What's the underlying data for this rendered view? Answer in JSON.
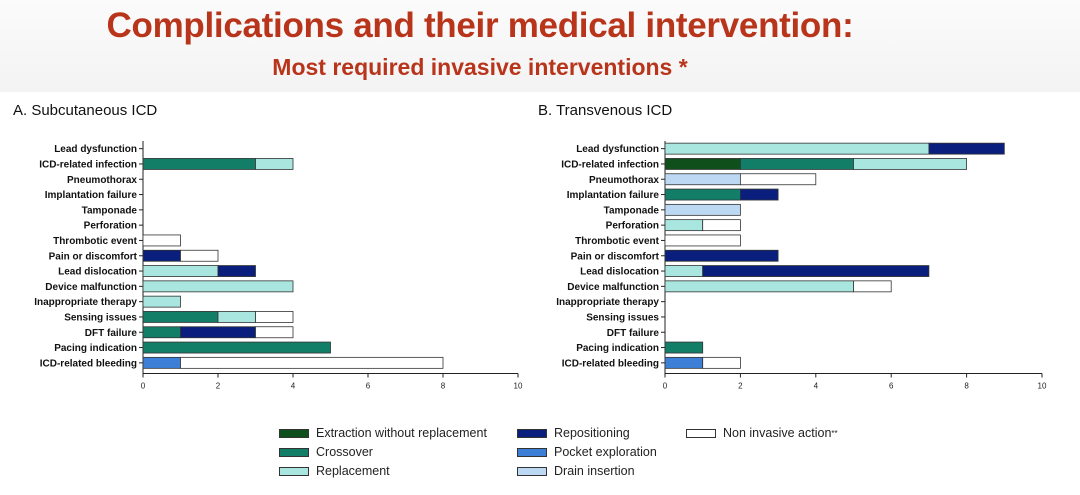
{
  "header": {
    "title": "Complications  and their medical intervention:",
    "subtitle": "Most required invasive interventions *"
  },
  "colors": {
    "extraction": "#0f4f1c",
    "crossover": "#137e68",
    "replacement": "#a8e6df",
    "repositioning": "#0a1f7d",
    "pocket": "#3d7fd6",
    "drain": "#bcd8f2",
    "noninvasive": "#ffffff"
  },
  "legend": [
    {
      "key": "extraction",
      "label": "Extraction without replacement"
    },
    {
      "key": "crossover",
      "label": "Crossover"
    },
    {
      "key": "replacement",
      "label": "Replacement"
    },
    {
      "key": "repositioning",
      "label": "Repositioning"
    },
    {
      "key": "pocket",
      "label": "Pocket exploration"
    },
    {
      "key": "drain",
      "label": "Drain insertion"
    },
    {
      "key": "noninvasive",
      "label": "Non invasive action",
      "sup": "**"
    }
  ],
  "chart_data": [
    {
      "type": "bar",
      "orientation": "horizontal",
      "stacked": true,
      "title": "A. Subcutaneous ICD",
      "xlim": [
        0,
        10
      ],
      "xticks": [
        "0",
        "2",
        "4",
        "6",
        "8",
        "10"
      ],
      "categories": [
        "Lead dysfunction",
        "ICD-related infection",
        "Pneumothorax",
        "Implantation failure",
        "Tamponade",
        "Perforation",
        "Thrombotic event",
        "Pain or discomfort",
        "Lead dislocation",
        "Device malfunction",
        "Inappropriate therapy",
        "Sensing issues",
        "DFT failure",
        "Pacing indication",
        "ICD-related bleeding"
      ],
      "series": [
        {
          "key": "extraction",
          "name": "Extraction without replacement",
          "values": [
            0,
            0,
            0,
            0,
            0,
            0,
            0,
            0,
            0,
            0,
            0,
            0,
            0,
            0,
            0
          ]
        },
        {
          "key": "crossover",
          "name": "Crossover",
          "values": [
            0,
            3,
            0,
            0,
            0,
            0,
            0,
            0,
            0,
            0,
            0,
            2,
            1,
            5,
            0
          ]
        },
        {
          "key": "pocket",
          "name": "Pocket exploration",
          "values": [
            0,
            0,
            0,
            0,
            0,
            0,
            0,
            0,
            0,
            0,
            0,
            0,
            0,
            0,
            1
          ]
        },
        {
          "key": "replacement",
          "name": "Replacement",
          "values": [
            0,
            1,
            0,
            0,
            0,
            0,
            0,
            0,
            2,
            4,
            1,
            1,
            0,
            0,
            0
          ]
        },
        {
          "key": "repositioning",
          "name": "Repositioning",
          "values": [
            0,
            0,
            0,
            0,
            0,
            0,
            0,
            1,
            1,
            0,
            0,
            0,
            2,
            0,
            0
          ]
        },
        {
          "key": "drain",
          "name": "Drain insertion",
          "values": [
            0,
            0,
            0,
            0,
            0,
            0,
            0,
            0,
            0,
            0,
            0,
            0,
            0,
            0,
            0
          ]
        },
        {
          "key": "noninvasive",
          "name": "Non invasive action",
          "values": [
            0,
            0,
            0,
            0,
            0,
            0,
            1,
            1,
            0,
            0,
            0,
            1,
            1,
            0,
            7
          ]
        }
      ]
    },
    {
      "type": "bar",
      "orientation": "horizontal",
      "stacked": true,
      "title": "B. Transvenous ICD",
      "xlim": [
        0,
        10
      ],
      "xticks": [
        "0",
        "2",
        "4",
        "6",
        "8",
        "10"
      ],
      "categories": [
        "Lead dysfunction",
        "ICD-related infection",
        "Pneumothorax",
        "Implantation failure",
        "Tamponade",
        "Perforation",
        "Thrombotic event",
        "Pain or discomfort",
        "Lead dislocation",
        "Device malfunction",
        "Inappropriate therapy",
        "Sensing issues",
        "DFT failure",
        "Pacing indication",
        "ICD-related bleeding"
      ],
      "series": [
        {
          "key": "extraction",
          "name": "Extraction without replacement",
          "values": [
            0,
            2,
            0,
            0,
            0,
            0,
            0,
            0,
            0,
            0,
            0,
            0,
            0,
            0,
            0
          ]
        },
        {
          "key": "crossover",
          "name": "Crossover",
          "values": [
            0,
            3,
            0,
            2,
            0,
            0,
            0,
            0,
            0,
            0,
            0,
            0,
            0,
            1,
            0
          ]
        },
        {
          "key": "pocket",
          "name": "Pocket exploration",
          "values": [
            0,
            0,
            0,
            0,
            0,
            0,
            0,
            0,
            0,
            0,
            0,
            0,
            0,
            0,
            1
          ]
        },
        {
          "key": "replacement",
          "name": "Replacement",
          "values": [
            7,
            3,
            0,
            0,
            0,
            1,
            0,
            0,
            1,
            5,
            0,
            0,
            0,
            0,
            0
          ]
        },
        {
          "key": "repositioning",
          "name": "Repositioning",
          "values": [
            2,
            0,
            0,
            1,
            0,
            0,
            0,
            3,
            6,
            0,
            0,
            0,
            0,
            0,
            0
          ]
        },
        {
          "key": "drain",
          "name": "Drain insertion",
          "values": [
            0,
            0,
            2,
            0,
            2,
            0,
            0,
            0,
            0,
            0,
            0,
            0,
            0,
            0,
            0
          ]
        },
        {
          "key": "noninvasive",
          "name": "Non invasive action",
          "values": [
            0,
            0,
            2,
            0,
            0,
            1,
            2,
            0,
            0,
            1,
            0,
            0,
            0,
            0,
            1
          ]
        }
      ]
    }
  ]
}
